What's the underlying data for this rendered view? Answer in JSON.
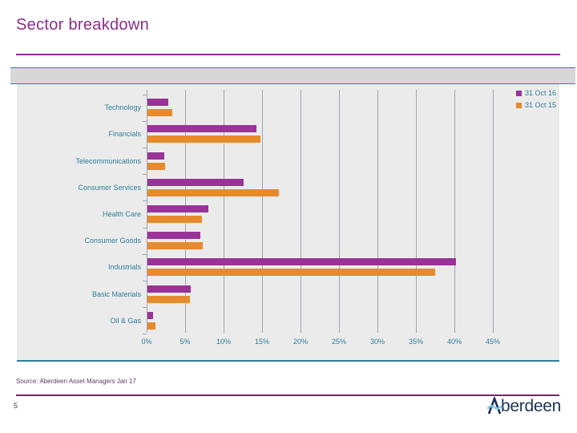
{
  "slide": {
    "title": "Sector breakdown",
    "source_note": "Source: Aberdeen Asset Managers  Jan 17",
    "page_number": "5",
    "logo": {
      "initial": "A",
      "rest": "berdeen"
    }
  },
  "colors": {
    "title_plum": "#8C2D85",
    "bar_purple": "#9A3397",
    "bar_orange": "#E78A2C",
    "axis_teal": "#2E7F9B",
    "gridline_gray": "#9EA7B6",
    "chart_background": "#EBEBEB",
    "band_background": "#D7D7D7",
    "logo_navy": "#1B3358",
    "logo_wave_blue": "#85C8E6"
  },
  "chart_data": {
    "type": "bar",
    "orientation": "horizontal",
    "title": "",
    "xlabel": "",
    "ylabel": "",
    "xlim": [
      0,
      45
    ],
    "grid": true,
    "legend_position": "top-right",
    "categories": [
      "Technology",
      "Financials",
      "Telecommunications",
      "Consumer Services",
      "Health Care",
      "Consumer Goods",
      "Industrials",
      "Basic Materials",
      "Oil & Gas"
    ],
    "series": [
      {
        "name": "31 Oct 16",
        "color": "#9A3397",
        "values": [
          2.7,
          14.2,
          2.2,
          12.5,
          7.9,
          6.9,
          40.1,
          5.6,
          0.7
        ]
      },
      {
        "name": "31 Oct 15",
        "color": "#E78A2C",
        "values": [
          3.2,
          14.7,
          2.3,
          17.1,
          7.1,
          7.2,
          37.4,
          5.5,
          1.0
        ]
      }
    ],
    "x_ticks": [
      "0%",
      "5%",
      "10%",
      "15%",
      "20%",
      "25%",
      "30%",
      "35%",
      "40%",
      "45%"
    ]
  }
}
